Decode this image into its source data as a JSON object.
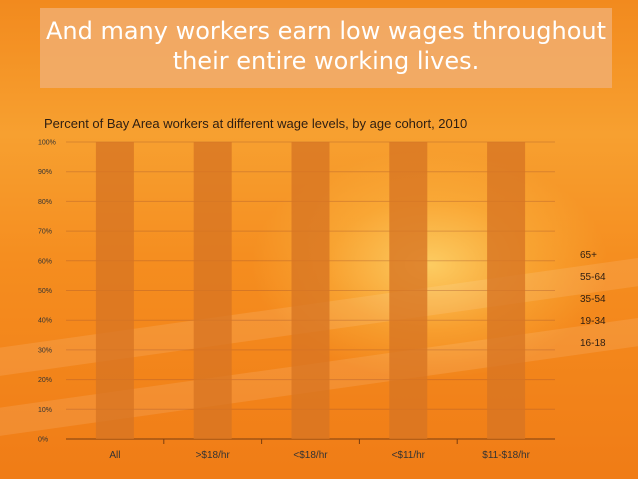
{
  "title": "And many workers earn low wages throughout their entire working lives.",
  "chart_data": {
    "type": "bar",
    "title": "Percent of Bay Area workers at different wage levels, by age cohort, 2010",
    "categories": [
      "All",
      ">$18/hr",
      "<$18/hr",
      "<$11/hr",
      "$11-$18/hr"
    ],
    "values": [
      100,
      100,
      100,
      100,
      100
    ],
    "y_ticks": [
      "0%",
      "10%",
      "20%",
      "30%",
      "40%",
      "50%",
      "60%",
      "70%",
      "80%",
      "90%",
      "100%"
    ],
    "ylim": [
      0,
      100
    ],
    "legend": [
      "65+",
      "55-64",
      "35-54",
      "19-34",
      "16-18"
    ],
    "legend_position": "right",
    "grid": true,
    "bar_color": "#d77422"
  }
}
